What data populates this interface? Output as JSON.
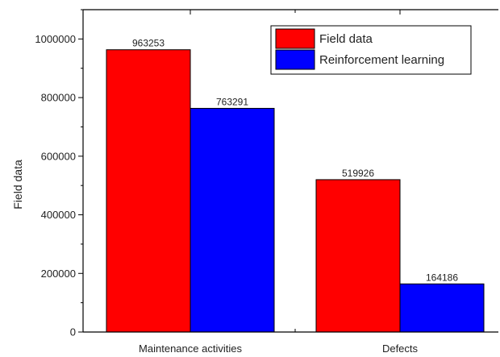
{
  "chart_data": {
    "type": "bar",
    "categories": [
      "Maintenance activities",
      "Defects"
    ],
    "series": [
      {
        "name": "Field data",
        "color": "#ff0000",
        "values": [
          963253,
          519926
        ]
      },
      {
        "name": "Reinforcement learning",
        "color": "#0000ff",
        "values": [
          763291,
          164186
        ]
      }
    ],
    "data_labels": [
      [
        "963253",
        "519926"
      ],
      [
        "763291",
        "164186"
      ]
    ],
    "ylabel": "Field data",
    "ylim": [
      0,
      1100000
    ],
    "yticks": [
      0,
      200000,
      400000,
      600000,
      800000,
      1000000
    ],
    "ytick_labels": [
      "0",
      "200000",
      "400000",
      "600000",
      "800000",
      "1000000"
    ],
    "grid": false,
    "legend_position": "top-right"
  }
}
